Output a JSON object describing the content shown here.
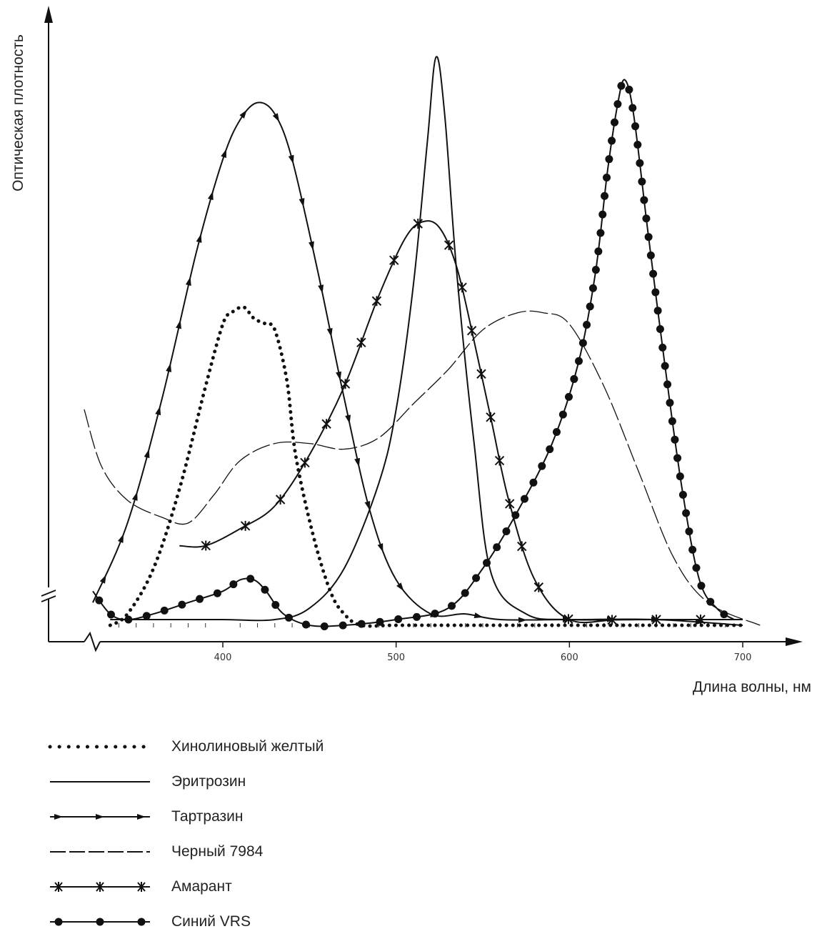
{
  "chart_data": {
    "type": "line",
    "title": "",
    "xlabel": "Длина волны, нм",
    "ylabel": "Оптическая плотность",
    "x_ticks": [
      400,
      500,
      600,
      700
    ],
    "x_tick_labels": [
      "400",
      "500",
      "600",
      "700"
    ],
    "xlim": [
      300,
      720
    ],
    "ylim": [
      0,
      1.0
    ],
    "y_tick_labels": [],
    "grid": false,
    "legend_position": "bottom",
    "series": [
      {
        "name": "Хинолиновый желтый",
        "style": "dotted",
        "x": [
          335,
          345,
          360,
          375,
          390,
          400,
          405,
          412,
          418,
          425,
          430,
          437,
          442,
          452,
          462,
          470,
          480,
          500,
          550,
          600,
          650,
          700
        ],
        "y": [
          0.0,
          0.02,
          0.1,
          0.24,
          0.42,
          0.53,
          0.55,
          0.56,
          0.54,
          0.53,
          0.52,
          0.43,
          0.3,
          0.16,
          0.06,
          0.02,
          0.0,
          0.0,
          0.0,
          0.0,
          0.0,
          0.0
        ]
      },
      {
        "name": "Эритрозин",
        "style": "solid",
        "x": [
          335,
          350,
          370,
          400,
          430,
          450,
          470,
          490,
          500,
          510,
          518,
          523,
          528,
          535,
          545,
          555,
          575,
          600,
          650,
          700
        ],
        "y": [
          0.01,
          0.01,
          0.01,
          0.01,
          0.01,
          0.03,
          0.1,
          0.25,
          0.38,
          0.6,
          0.85,
          1.0,
          0.9,
          0.62,
          0.32,
          0.09,
          0.02,
          0.01,
          0.01,
          0.01
        ]
      },
      {
        "name": "Тартразин",
        "style": "arrows",
        "x": [
          325,
          345,
          365,
          385,
          400,
          410,
          420,
          430,
          440,
          455,
          470,
          485,
          500,
          520,
          540,
          560,
          600,
          650,
          700
        ],
        "y": [
          0.04,
          0.18,
          0.4,
          0.66,
          0.82,
          0.89,
          0.92,
          0.9,
          0.82,
          0.62,
          0.4,
          0.2,
          0.08,
          0.02,
          0.02,
          0.01,
          0.01,
          0.01,
          0.0
        ]
      },
      {
        "name": "Черный 7984",
        "style": "dashed",
        "x": [
          320,
          330,
          345,
          365,
          380,
          395,
          410,
          430,
          450,
          470,
          490,
          510,
          530,
          550,
          570,
          585,
          600,
          620,
          640,
          660,
          680,
          710
        ],
        "y": [
          0.38,
          0.28,
          0.22,
          0.19,
          0.18,
          0.23,
          0.29,
          0.32,
          0.32,
          0.31,
          0.33,
          0.39,
          0.45,
          0.52,
          0.55,
          0.55,
          0.53,
          0.42,
          0.27,
          0.12,
          0.04,
          0.0
        ]
      },
      {
        "name": "Амарант",
        "style": "x-markers",
        "x": [
          375,
          390,
          410,
          430,
          450,
          470,
          490,
          505,
          515,
          525,
          535,
          545,
          555,
          565,
          580,
          600,
          630,
          680
        ],
        "y": [
          0.14,
          0.14,
          0.17,
          0.21,
          0.3,
          0.42,
          0.58,
          0.68,
          0.71,
          0.7,
          0.63,
          0.5,
          0.36,
          0.22,
          0.08,
          0.01,
          0.01,
          0.01
        ]
      },
      {
        "name": "Синий VRS",
        "style": "dots",
        "x": [
          325,
          335,
          345,
          360,
          380,
          400,
          410,
          418,
          425,
          435,
          450,
          470,
          500,
          530,
          550,
          570,
          590,
          605,
          615,
          622,
          628,
          632,
          637,
          645,
          655,
          665,
          675,
          685,
          695
        ],
        "y": [
          0.06,
          0.02,
          0.01,
          0.02,
          0.04,
          0.06,
          0.08,
          0.08,
          0.06,
          0.02,
          0.0,
          0.0,
          0.01,
          0.03,
          0.1,
          0.2,
          0.32,
          0.46,
          0.62,
          0.8,
          0.92,
          0.96,
          0.9,
          0.7,
          0.46,
          0.24,
          0.08,
          0.03,
          0.01
        ]
      }
    ]
  },
  "legend": {
    "items": [
      {
        "label": "Хинолиновый желтый",
        "style": "dotted"
      },
      {
        "label": "Эритрозин",
        "style": "solid"
      },
      {
        "label": "Тартразин",
        "style": "arrows"
      },
      {
        "label": "Черный 7984",
        "style": "dashed"
      },
      {
        "label": "Амарант",
        "style": "x-markers"
      },
      {
        "label": "Синий VRS",
        "style": "dots"
      }
    ]
  }
}
